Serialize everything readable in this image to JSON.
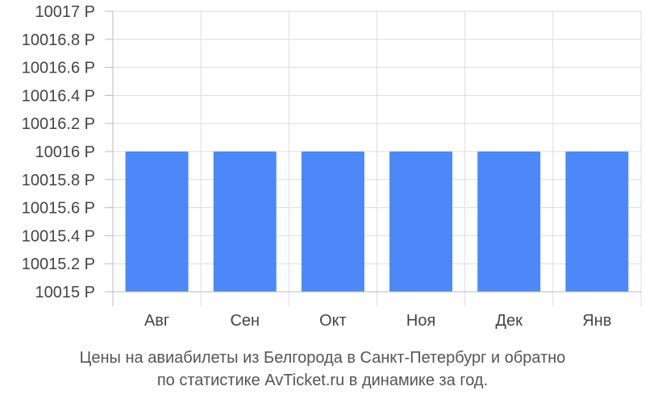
{
  "chart_data": {
    "type": "bar",
    "categories": [
      "Авг",
      "Сен",
      "Окт",
      "Ноя",
      "Дек",
      "Янв"
    ],
    "values": [
      10016,
      10016,
      10016,
      10016,
      10016,
      10016
    ],
    "ylim": [
      10015,
      10017
    ],
    "yticks": [
      10017,
      10016.8,
      10016.6,
      10016.4,
      10016.2,
      10016,
      10015.8,
      10015.6,
      10015.4,
      10015.2,
      10015
    ],
    "y_unit": "Р",
    "grid": true,
    "bar_color": "#4d88f9"
  },
  "caption": {
    "line1": "Цены на авиабилеты из Белгорода в Санкт-Петербург и обратно",
    "line2": "по статистике AvTicket.ru в динамике за год."
  }
}
